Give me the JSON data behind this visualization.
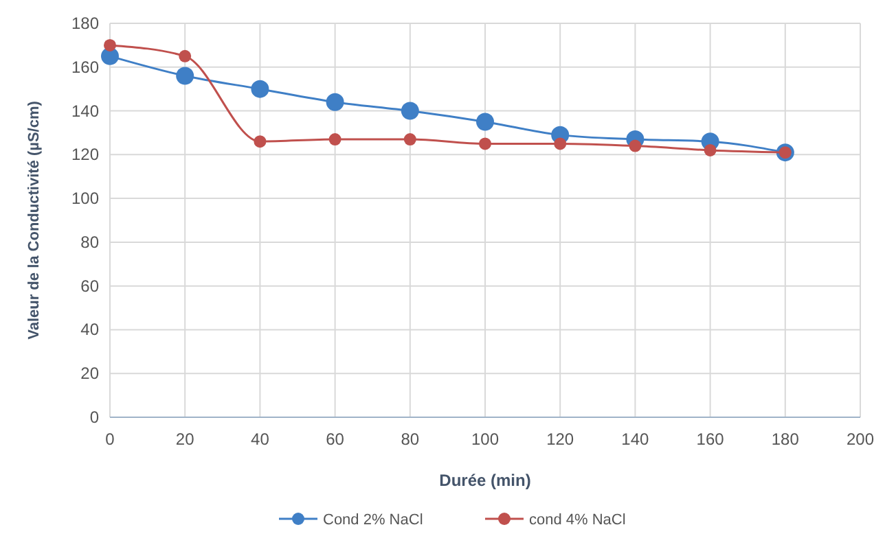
{
  "chart_data": {
    "type": "line",
    "xlabel": "Durée (min)",
    "ylabel": "Valeur de la Conductivité (µS/cm)",
    "x": [
      0,
      20,
      40,
      60,
      80,
      100,
      120,
      140,
      160,
      180
    ],
    "series": [
      {
        "name": "Cond 2% NaCl",
        "color": "#3f7fc6",
        "values": [
          165,
          156,
          150,
          144,
          140,
          135,
          129,
          127,
          126,
          121
        ]
      },
      {
        "name": "cond 4% NaCl",
        "color": "#c0504d",
        "values": [
          170,
          165,
          126,
          127,
          127,
          125,
          125,
          124,
          122,
          121
        ]
      }
    ],
    "xlim": [
      0,
      200
    ],
    "xticks": [
      0,
      20,
      40,
      60,
      80,
      100,
      120,
      140,
      160,
      180,
      200
    ],
    "ylim": [
      0,
      180
    ],
    "yticks": [
      0,
      20,
      40,
      60,
      80,
      100,
      120,
      140,
      160,
      180
    ],
    "grid": true,
    "legend": "bottom",
    "marker": "circle",
    "line_style": "solid"
  }
}
